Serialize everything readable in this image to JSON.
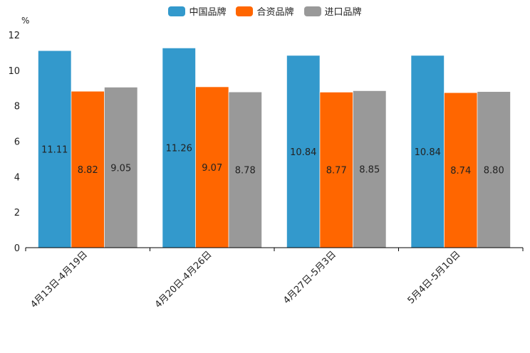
{
  "chart_data": {
    "type": "bar",
    "ylabel": "%",
    "ylim": [
      0,
      12
    ],
    "yticks": [
      0,
      2,
      4,
      6,
      8,
      10,
      12
    ],
    "categories": [
      "4月13日-4月19日",
      "4月20日-4月26日",
      "4月27日-5月3日",
      "5月4日-5月10日"
    ],
    "series": [
      {
        "name": "中国品牌",
        "color": "#3399cc",
        "values": [
          11.11,
          11.26,
          10.84,
          10.84
        ],
        "labels": [
          "11.11",
          "11.26",
          "10.84",
          "10.84"
        ]
      },
      {
        "name": "合资品牌",
        "color": "#ff6600",
        "values": [
          8.82,
          9.07,
          8.77,
          8.74
        ],
        "labels": [
          "8.82",
          "9.07",
          "8.77",
          "8.74"
        ]
      },
      {
        "name": "进口品牌",
        "color": "#999999",
        "values": [
          9.05,
          8.78,
          8.85,
          8.8
        ],
        "labels": [
          "9.05",
          "8.78",
          "8.85",
          "8.80"
        ]
      }
    ],
    "legend_position": "top-center",
    "grid": false
  }
}
